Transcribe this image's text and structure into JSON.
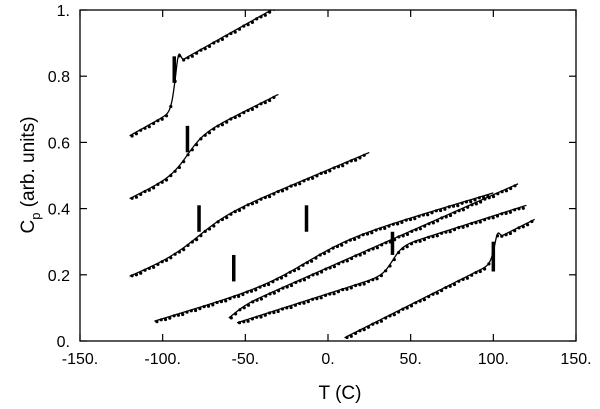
{
  "chart_data": {
    "type": "scatter",
    "title": "",
    "xlabel": "T (C)",
    "ylabel": {
      "main": "C",
      "subscript": "p",
      "rest": " (arb. units)"
    },
    "xlim": [
      -150,
      150
    ],
    "ylim": [
      0,
      1
    ],
    "x_ticks": [
      {
        "value": -150,
        "label": "-150."
      },
      {
        "value": -100,
        "label": "-100."
      },
      {
        "value": -50,
        "label": "-50."
      },
      {
        "value": 0,
        "label": "0."
      },
      {
        "value": 50,
        "label": "50."
      },
      {
        "value": 100,
        "label": "100."
      },
      {
        "value": 150,
        "label": "150."
      }
    ],
    "y_ticks": [
      {
        "value": 0,
        "label": "0."
      },
      {
        "value": 0.2,
        "label": "0.2"
      },
      {
        "value": 0.4,
        "label": "0.4"
      },
      {
        "value": 0.6,
        "label": "0.6"
      },
      {
        "value": 0.8,
        "label": "0.8"
      },
      {
        "value": 1,
        "label": "1."
      }
    ],
    "grid": false,
    "legend": "none",
    "curves": [
      {
        "x_range": [
          -120,
          -25
        ],
        "transition": -93,
        "width": 1.2,
        "base": 0.62,
        "slope": 0.0028,
        "step": 0.14,
        "overshoot": 0.035,
        "tick_y": [
          0.78,
          0.86
        ]
      },
      {
        "x_range": [
          -120,
          -30
        ],
        "transition": -85,
        "width": 5,
        "base": 0.43,
        "slope": 0.0025,
        "step": 0.09,
        "tick_y": [
          0.57,
          0.65
        ]
      },
      {
        "x_range": [
          -120,
          25
        ],
        "transition": -78,
        "width": 9,
        "base": 0.195,
        "slope": 0.0021,
        "step": 0.07,
        "tick_y": [
          0.33,
          0.41
        ]
      },
      {
        "x_range": [
          -105,
          100
        ],
        "transition": -13,
        "width": 14,
        "base": 0.06,
        "slope": 0.0015,
        "step": 0.08,
        "tick_y": [
          0.33,
          0.41
        ]
      },
      {
        "x_range": [
          -60,
          115
        ],
        "transition": -57,
        "width": 4,
        "base": 0.06,
        "slope": 0.0022,
        "step": 0.03,
        "tick_y": [
          0.18,
          0.26
        ]
      },
      {
        "x_range": [
          -55,
          120
        ],
        "transition": 39,
        "width": 3,
        "base": 0.055,
        "slope": 0.0016,
        "step": 0.075,
        "tick_y": [
          0.26,
          0.33
        ]
      },
      {
        "x_range": [
          10,
          125
        ],
        "transition": 100,
        "width": 1.2,
        "base": 0.01,
        "slope": 0.0025,
        "step": 0.07,
        "overshoot": 0.02,
        "tick_y": [
          0.21,
          0.3
        ]
      }
    ]
  }
}
